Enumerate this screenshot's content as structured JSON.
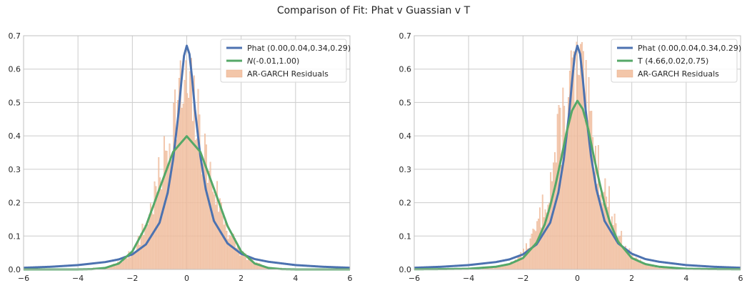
{
  "figure": {
    "title": "Comparison of Fit: Phat v Guassian v T"
  },
  "colors": {
    "phat": "#4c72b0",
    "fit": "#55a868",
    "hist": "#f3c6a9",
    "hist_edge": "#e8a982",
    "grid": "#cccccc",
    "frame": "#c0c0c0"
  },
  "chart_data": [
    {
      "type": "line",
      "title": "",
      "xlabel": "",
      "ylabel": "",
      "xlim": [
        -6,
        6
      ],
      "ylim": [
        0,
        0.7
      ],
      "xticks": [
        -6,
        -4,
        -2,
        0,
        2,
        4,
        6
      ],
      "yticks": [
        0.0,
        0.1,
        0.2,
        0.3,
        0.4,
        0.5,
        0.6,
        0.7
      ],
      "grid": true,
      "legend_position": "top-right",
      "legend": [
        {
          "label": "Phat (0.00,0.04,0.34,0.29)",
          "kind": "line",
          "series": "phat"
        },
        {
          "label": "N(-0.01,1.00)",
          "kind": "line",
          "series": "fit",
          "italic_prefix": "N"
        },
        {
          "label": "AR-GARCH Residuals",
          "kind": "patch",
          "series": "hist"
        }
      ],
      "series": [
        {
          "name": "Phat (0.00,0.04,0.34,0.29)",
          "key": "phat",
          "x": [
            -6,
            -5,
            -4,
            -3,
            -2.5,
            -2,
            -1.5,
            -1,
            -0.7,
            -0.5,
            -0.3,
            -0.2,
            -0.1,
            0,
            0.1,
            0.2,
            0.3,
            0.5,
            0.7,
            1,
            1.5,
            2,
            2.5,
            3,
            4,
            5,
            6
          ],
          "y": [
            0.005,
            0.008,
            0.013,
            0.022,
            0.03,
            0.045,
            0.075,
            0.14,
            0.23,
            0.33,
            0.47,
            0.56,
            0.64,
            0.67,
            0.645,
            0.57,
            0.48,
            0.34,
            0.24,
            0.145,
            0.078,
            0.047,
            0.031,
            0.023,
            0.013,
            0.008,
            0.005
          ]
        },
        {
          "name": "N(-0.01,1.00)",
          "key": "fit",
          "x": [
            -6,
            -5,
            -4,
            -3.5,
            -3,
            -2.5,
            -2,
            -1.5,
            -1,
            -0.5,
            0,
            0.5,
            1,
            1.5,
            2,
            2.5,
            3,
            3.5,
            4,
            5,
            6
          ],
          "y": [
            0.0,
            0.0,
            0.0001,
            0.0009,
            0.0045,
            0.0176,
            0.054,
            0.13,
            0.242,
            0.352,
            0.399,
            0.352,
            0.242,
            0.13,
            0.054,
            0.0176,
            0.0045,
            0.0009,
            0.0001,
            0.0,
            0.0
          ]
        }
      ],
      "histogram": {
        "name": "AR-GARCH Residuals",
        "bin_width": 0.05,
        "seed": 7,
        "centers": [
          -3,
          -2.5,
          -2,
          -1.5,
          -1.2,
          -1,
          -0.8,
          -0.6,
          -0.4,
          -0.2,
          0,
          0.2,
          0.4,
          0.6,
          0.8,
          1,
          1.2,
          1.5,
          2,
          2.5,
          3
        ],
        "heights": [
          0.004,
          0.02,
          0.05,
          0.13,
          0.21,
          0.27,
          0.33,
          0.4,
          0.48,
          0.52,
          0.53,
          0.5,
          0.44,
          0.37,
          0.3,
          0.25,
          0.2,
          0.12,
          0.05,
          0.02,
          0.004
        ]
      }
    },
    {
      "type": "line",
      "title": "",
      "xlabel": "",
      "ylabel": "",
      "xlim": [
        -6,
        6
      ],
      "ylim": [
        0,
        0.7
      ],
      "xticks": [
        -6,
        -4,
        -2,
        0,
        2,
        4,
        6
      ],
      "yticks": [
        0.0,
        0.1,
        0.2,
        0.3,
        0.4,
        0.5,
        0.6,
        0.7
      ],
      "grid": true,
      "legend_position": "top-right",
      "legend": [
        {
          "label": "Phat (0.00,0.04,0.34,0.29)",
          "kind": "line",
          "series": "phat"
        },
        {
          "label": "T (4.66,0.02,0.75)",
          "kind": "line",
          "series": "fit"
        },
        {
          "label": "AR-GARCH Residuals",
          "kind": "patch",
          "series": "hist"
        }
      ],
      "series": [
        {
          "name": "Phat (0.00,0.04,0.34,0.29)",
          "key": "phat",
          "x": [
            -6,
            -5,
            -4,
            -3,
            -2.5,
            -2,
            -1.5,
            -1,
            -0.7,
            -0.5,
            -0.3,
            -0.2,
            -0.1,
            0,
            0.1,
            0.2,
            0.3,
            0.5,
            0.7,
            1,
            1.5,
            2,
            2.5,
            3,
            4,
            5,
            6
          ],
          "y": [
            0.005,
            0.008,
            0.013,
            0.022,
            0.03,
            0.045,
            0.075,
            0.14,
            0.23,
            0.33,
            0.47,
            0.56,
            0.64,
            0.67,
            0.645,
            0.57,
            0.48,
            0.34,
            0.24,
            0.145,
            0.078,
            0.047,
            0.031,
            0.023,
            0.013,
            0.008,
            0.005
          ]
        },
        {
          "name": "T (4.66,0.02,0.75)",
          "key": "fit",
          "x": [
            -6,
            -5,
            -4,
            -3,
            -2.5,
            -2,
            -1.5,
            -1.2,
            -1,
            -0.8,
            -0.6,
            -0.4,
            -0.2,
            0,
            0.2,
            0.4,
            0.6,
            0.8,
            1,
            1.2,
            1.5,
            2,
            2.5,
            3,
            4,
            5,
            6
          ],
          "y": [
            0.0005,
            0.001,
            0.002,
            0.008,
            0.016,
            0.034,
            0.08,
            0.135,
            0.19,
            0.255,
            0.33,
            0.41,
            0.475,
            0.505,
            0.48,
            0.42,
            0.34,
            0.265,
            0.195,
            0.14,
            0.083,
            0.034,
            0.016,
            0.008,
            0.002,
            0.001,
            0.0005
          ]
        }
      ],
      "histogram": {
        "name": "AR-GARCH Residuals",
        "bin_width": 0.05,
        "seed": 13,
        "centers": [
          -3,
          -2.5,
          -2,
          -1.5,
          -1.2,
          -1,
          -0.8,
          -0.6,
          -0.4,
          -0.2,
          0,
          0.2,
          0.4,
          0.6,
          0.8,
          1,
          1.2,
          1.5,
          2,
          2.5,
          3
        ],
        "heights": [
          0.004,
          0.015,
          0.045,
          0.12,
          0.2,
          0.26,
          0.34,
          0.42,
          0.5,
          0.56,
          0.57,
          0.54,
          0.46,
          0.38,
          0.3,
          0.24,
          0.19,
          0.11,
          0.04,
          0.015,
          0.004
        ]
      }
    }
  ]
}
